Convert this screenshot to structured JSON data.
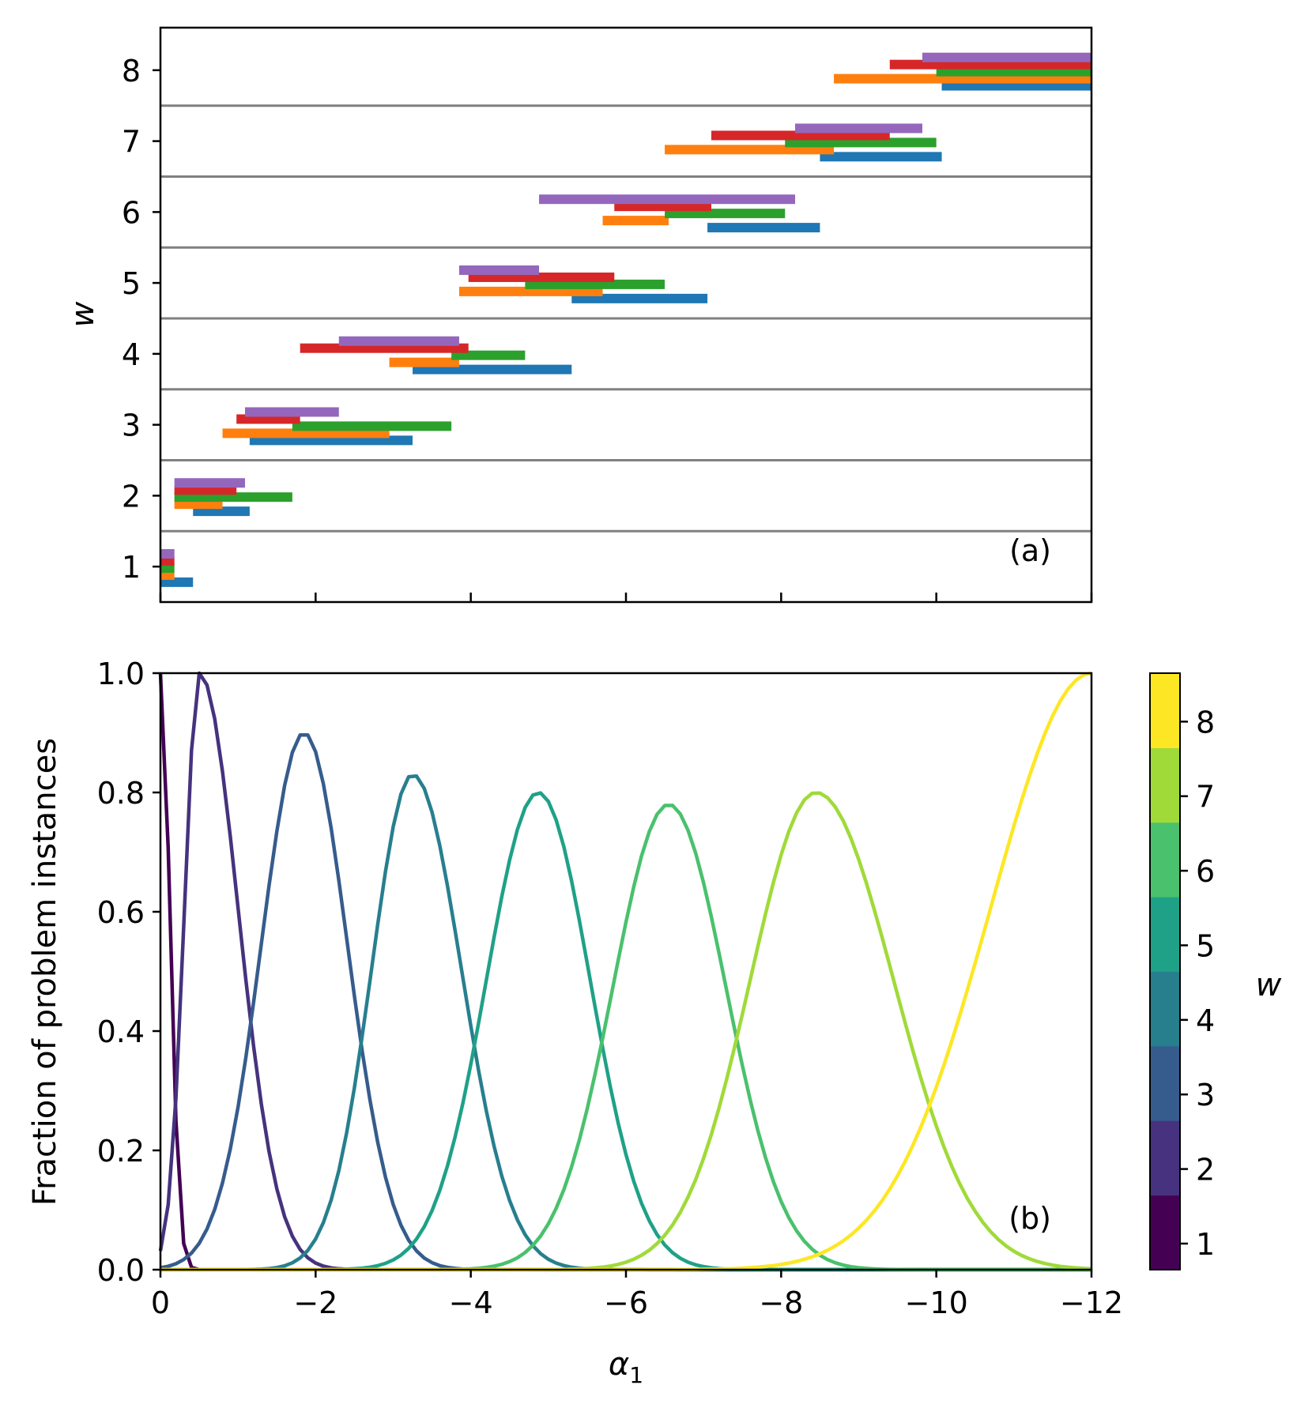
{
  "figure": {
    "colors": {
      "series": [
        "#1f77b4",
        "#ff7f0e",
        "#2ca02c",
        "#d62728",
        "#9467bd"
      ],
      "band_line": "#808080",
      "viridis": [
        "#440154",
        "#46327e",
        "#365c8d",
        "#277f8e",
        "#1fa187",
        "#4ac16d",
        "#a0da39",
        "#fde725"
      ]
    }
  },
  "chart_data": [
    {
      "type": "bar",
      "orientation": "horizontal-ranges",
      "panel_label": "(a)",
      "ylabel": "w",
      "xlim": [
        0,
        -12
      ],
      "ylim": [
        0.5,
        8.6
      ],
      "yticks": [
        "1",
        "2",
        "3",
        "4",
        "5",
        "6",
        "7",
        "8"
      ],
      "xticks": [
        0,
        -2,
        -4,
        -6,
        -8,
        -10,
        -12
      ],
      "x_tick_labels_shown": false,
      "band_separators": [
        1.5,
        2.5,
        3.5,
        4.5,
        5.5,
        6.5,
        7.5
      ],
      "series_count": 5,
      "ranges": [
        {
          "w": 1,
          "series": 0,
          "x0": 0.0,
          "x1": -0.42
        },
        {
          "w": 1,
          "series": 1,
          "x0": 0.0,
          "x1": -0.18
        },
        {
          "w": 1,
          "series": 2,
          "x0": 0.0,
          "x1": -0.18
        },
        {
          "w": 1,
          "series": 3,
          "x0": 0.0,
          "x1": -0.18
        },
        {
          "w": 1,
          "series": 4,
          "x0": 0.0,
          "x1": -0.18
        },
        {
          "w": 2,
          "series": 0,
          "x0": -0.42,
          "x1": -1.15
        },
        {
          "w": 2,
          "series": 1,
          "x0": -0.18,
          "x1": -0.8
        },
        {
          "w": 2,
          "series": 2,
          "x0": -0.18,
          "x1": -1.7
        },
        {
          "w": 2,
          "series": 3,
          "x0": -0.18,
          "x1": -0.98
        },
        {
          "w": 2,
          "series": 4,
          "x0": -0.18,
          "x1": -1.09
        },
        {
          "w": 3,
          "series": 0,
          "x0": -1.15,
          "x1": -3.25
        },
        {
          "w": 3,
          "series": 1,
          "x0": -0.8,
          "x1": -2.95
        },
        {
          "w": 3,
          "series": 2,
          "x0": -1.7,
          "x1": -3.75
        },
        {
          "w": 3,
          "series": 3,
          "x0": -0.98,
          "x1": -1.8
        },
        {
          "w": 3,
          "series": 4,
          "x0": -1.09,
          "x1": -2.3
        },
        {
          "w": 4,
          "series": 0,
          "x0": -3.25,
          "x1": -5.3
        },
        {
          "w": 4,
          "series": 1,
          "x0": -2.95,
          "x1": -3.85
        },
        {
          "w": 4,
          "series": 2,
          "x0": -3.75,
          "x1": -4.7
        },
        {
          "w": 4,
          "series": 3,
          "x0": -1.8,
          "x1": -3.97
        },
        {
          "w": 4,
          "series": 4,
          "x0": -2.3,
          "x1": -3.85
        },
        {
          "w": 5,
          "series": 0,
          "x0": -5.3,
          "x1": -7.05
        },
        {
          "w": 5,
          "series": 1,
          "x0": -3.85,
          "x1": -5.7
        },
        {
          "w": 5,
          "series": 2,
          "x0": -4.7,
          "x1": -6.5
        },
        {
          "w": 5,
          "series": 3,
          "x0": -3.97,
          "x1": -5.85
        },
        {
          "w": 5,
          "series": 4,
          "x0": -3.85,
          "x1": -4.88
        },
        {
          "w": 6,
          "series": 0,
          "x0": -7.05,
          "x1": -8.5
        },
        {
          "w": 6,
          "series": 1,
          "x0": -5.7,
          "x1": -6.55
        },
        {
          "w": 6,
          "series": 2,
          "x0": -6.5,
          "x1": -8.05
        },
        {
          "w": 6,
          "series": 3,
          "x0": -5.85,
          "x1": -7.1
        },
        {
          "w": 6,
          "series": 4,
          "x0": -4.88,
          "x1": -8.18
        },
        {
          "w": 7,
          "series": 0,
          "x0": -8.5,
          "x1": -10.07
        },
        {
          "w": 7,
          "series": 1,
          "x0": -6.5,
          "x1": -8.68
        },
        {
          "w": 7,
          "series": 2,
          "x0": -8.05,
          "x1": -10.0
        },
        {
          "w": 7,
          "series": 3,
          "x0": -7.1,
          "x1": -9.4
        },
        {
          "w": 7,
          "series": 4,
          "x0": -8.18,
          "x1": -9.82
        },
        {
          "w": 8,
          "series": 0,
          "x0": -10.07,
          "x1": -12.0
        },
        {
          "w": 8,
          "series": 1,
          "x0": -8.68,
          "x1": -12.0
        },
        {
          "w": 8,
          "series": 2,
          "x0": -10.0,
          "x1": -12.0
        },
        {
          "w": 8,
          "series": 3,
          "x0": -9.4,
          "x1": -12.0
        },
        {
          "w": 8,
          "series": 4,
          "x0": -9.82,
          "x1": -12.0
        }
      ]
    },
    {
      "type": "line",
      "panel_label": "(b)",
      "xlabel": "α",
      "xlabel_subscript": "1",
      "ylabel": "Fraction of problem instances",
      "xlim": [
        0,
        -12
      ],
      "ylim": [
        0.0,
        1.0
      ],
      "xticks": [
        0,
        -2,
        -4,
        -6,
        -8,
        -10,
        -12
      ],
      "xtick_labels": [
        "0",
        "−2",
        "−4",
        "−6",
        "−8",
        "−10",
        "−12"
      ],
      "yticks": [
        0.0,
        0.2,
        0.4,
        0.6,
        0.8,
        1.0
      ],
      "ytick_labels": [
        "0.0",
        "0.2",
        "0.4",
        "0.6",
        "0.8",
        "1.0"
      ],
      "colorbar": {
        "label": "w",
        "ticks": [
          "1",
          "2",
          "3",
          "4",
          "5",
          "6",
          "7",
          "8"
        ],
        "range": [
          0.65,
          8.65
        ]
      },
      "series": [
        {
          "w": 1,
          "peak_x": 0.0,
          "peak_y": 1.0,
          "left_sigma": 0.1,
          "right_sigma": 0.12
        },
        {
          "w": 2,
          "peak_x": -0.5,
          "peak_y": 1.0,
          "left_sigma": 0.19,
          "right_sigma": 0.5
        },
        {
          "w": 3,
          "peak_x": -1.85,
          "peak_y": 0.9,
          "left_sigma": 0.55,
          "right_sigma": 0.56
        },
        {
          "w": 4,
          "peak_x": -3.25,
          "peak_y": 0.83,
          "left_sigma": 0.53,
          "right_sigma": 0.63
        },
        {
          "w": 5,
          "peak_x": -4.87,
          "peak_y": 0.8,
          "left_sigma": 0.67,
          "right_sigma": 0.67
        },
        {
          "w": 6,
          "peak_x": -6.55,
          "peak_y": 0.78,
          "left_sigma": 0.72,
          "right_sigma": 0.74
        },
        {
          "w": 7,
          "peak_x": -8.45,
          "peak_y": 0.8,
          "left_sigma": 0.85,
          "right_sigma": 1.0
        },
        {
          "w": 8,
          "peak_x": -12.0,
          "peak_y": 1.0,
          "left_sigma": 1.3,
          "right_sigma": 1.3
        }
      ]
    }
  ]
}
